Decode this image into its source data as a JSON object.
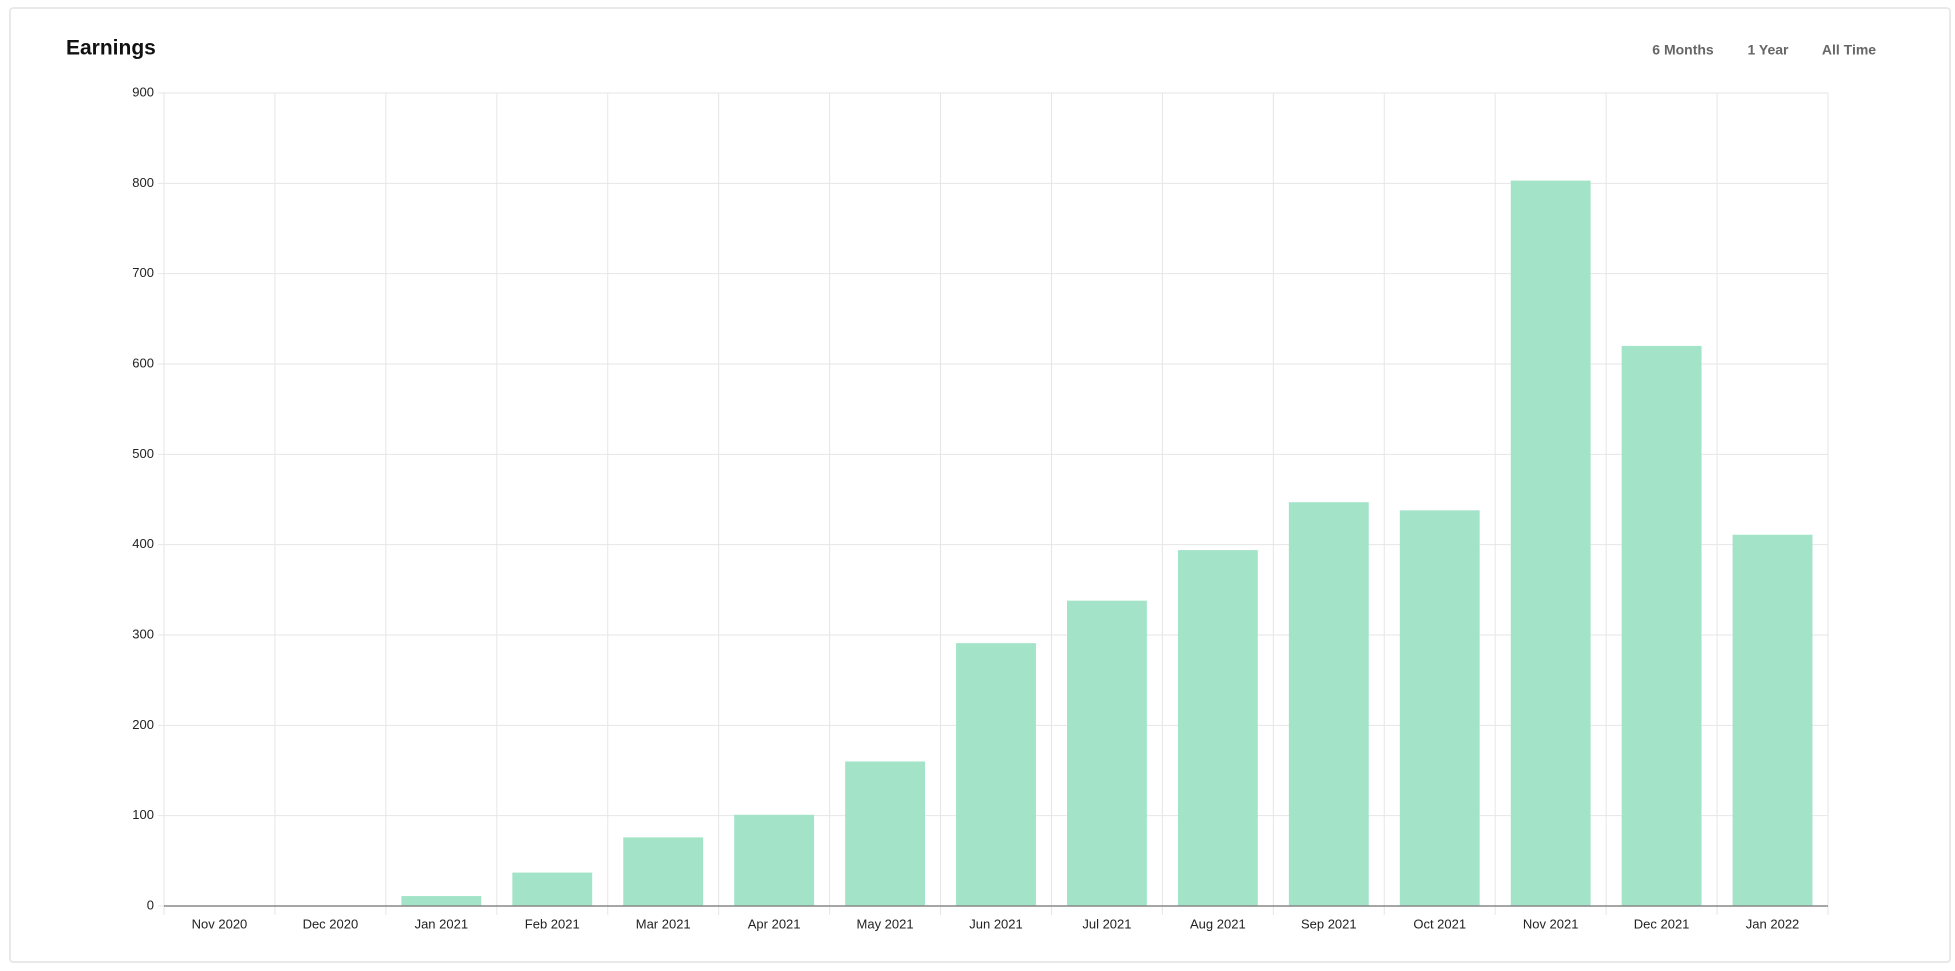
{
  "chart_data": {
    "type": "bar",
    "title": "Earnings",
    "categories": [
      "Nov 2020",
      "Dec 2020",
      "Jan 2021",
      "Feb 2021",
      "Mar 2021",
      "Apr 2021",
      "May 2021",
      "Jun 2021",
      "Jul 2021",
      "Aug 2021",
      "Sep 2021",
      "Oct 2021",
      "Nov 2021",
      "Dec 2021",
      "Jan 2022"
    ],
    "values": [
      0,
      0,
      11,
      37,
      76,
      101,
      160,
      291,
      338,
      394,
      447,
      438,
      803,
      620,
      411
    ],
    "color": "#a3e4c9",
    "ylim": [
      0,
      900
    ],
    "yticks": [
      0,
      100,
      200,
      300,
      400,
      500,
      600,
      700,
      800,
      900
    ],
    "grid": true
  },
  "controls": [
    "6 Months",
    "1 Year",
    "All Time"
  ]
}
